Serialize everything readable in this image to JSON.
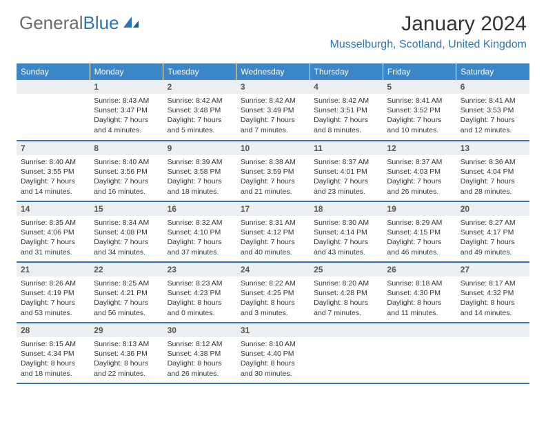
{
  "brand": {
    "part1": "General",
    "part2": "Blue"
  },
  "title": "January 2024",
  "location": "Musselburgh, Scotland, United Kingdom",
  "colors": {
    "header_bg": "#3d86c6",
    "accent": "#2e75b6",
    "daynum_bg": "#eceff1",
    "text": "#333333",
    "logo_gray": "#6b6b6b"
  },
  "weekdays": [
    "Sunday",
    "Monday",
    "Tuesday",
    "Wednesday",
    "Thursday",
    "Friday",
    "Saturday"
  ],
  "start_weekday": 1,
  "days": [
    {
      "n": 1,
      "sunrise": "8:43 AM",
      "sunset": "3:47 PM",
      "daylight": "7 hours and 4 minutes."
    },
    {
      "n": 2,
      "sunrise": "8:42 AM",
      "sunset": "3:48 PM",
      "daylight": "7 hours and 5 minutes."
    },
    {
      "n": 3,
      "sunrise": "8:42 AM",
      "sunset": "3:49 PM",
      "daylight": "7 hours and 7 minutes."
    },
    {
      "n": 4,
      "sunrise": "8:42 AM",
      "sunset": "3:51 PM",
      "daylight": "7 hours and 8 minutes."
    },
    {
      "n": 5,
      "sunrise": "8:41 AM",
      "sunset": "3:52 PM",
      "daylight": "7 hours and 10 minutes."
    },
    {
      "n": 6,
      "sunrise": "8:41 AM",
      "sunset": "3:53 PM",
      "daylight": "7 hours and 12 minutes."
    },
    {
      "n": 7,
      "sunrise": "8:40 AM",
      "sunset": "3:55 PM",
      "daylight": "7 hours and 14 minutes."
    },
    {
      "n": 8,
      "sunrise": "8:40 AM",
      "sunset": "3:56 PM",
      "daylight": "7 hours and 16 minutes."
    },
    {
      "n": 9,
      "sunrise": "8:39 AM",
      "sunset": "3:58 PM",
      "daylight": "7 hours and 18 minutes."
    },
    {
      "n": 10,
      "sunrise": "8:38 AM",
      "sunset": "3:59 PM",
      "daylight": "7 hours and 21 minutes."
    },
    {
      "n": 11,
      "sunrise": "8:37 AM",
      "sunset": "4:01 PM",
      "daylight": "7 hours and 23 minutes."
    },
    {
      "n": 12,
      "sunrise": "8:37 AM",
      "sunset": "4:03 PM",
      "daylight": "7 hours and 26 minutes."
    },
    {
      "n": 13,
      "sunrise": "8:36 AM",
      "sunset": "4:04 PM",
      "daylight": "7 hours and 28 minutes."
    },
    {
      "n": 14,
      "sunrise": "8:35 AM",
      "sunset": "4:06 PM",
      "daylight": "7 hours and 31 minutes."
    },
    {
      "n": 15,
      "sunrise": "8:34 AM",
      "sunset": "4:08 PM",
      "daylight": "7 hours and 34 minutes."
    },
    {
      "n": 16,
      "sunrise": "8:32 AM",
      "sunset": "4:10 PM",
      "daylight": "7 hours and 37 minutes."
    },
    {
      "n": 17,
      "sunrise": "8:31 AM",
      "sunset": "4:12 PM",
      "daylight": "7 hours and 40 minutes."
    },
    {
      "n": 18,
      "sunrise": "8:30 AM",
      "sunset": "4:14 PM",
      "daylight": "7 hours and 43 minutes."
    },
    {
      "n": 19,
      "sunrise": "8:29 AM",
      "sunset": "4:15 PM",
      "daylight": "7 hours and 46 minutes."
    },
    {
      "n": 20,
      "sunrise": "8:27 AM",
      "sunset": "4:17 PM",
      "daylight": "7 hours and 49 minutes."
    },
    {
      "n": 21,
      "sunrise": "8:26 AM",
      "sunset": "4:19 PM",
      "daylight": "7 hours and 53 minutes."
    },
    {
      "n": 22,
      "sunrise": "8:25 AM",
      "sunset": "4:21 PM",
      "daylight": "7 hours and 56 minutes."
    },
    {
      "n": 23,
      "sunrise": "8:23 AM",
      "sunset": "4:23 PM",
      "daylight": "8 hours and 0 minutes."
    },
    {
      "n": 24,
      "sunrise": "8:22 AM",
      "sunset": "4:25 PM",
      "daylight": "8 hours and 3 minutes."
    },
    {
      "n": 25,
      "sunrise": "8:20 AM",
      "sunset": "4:28 PM",
      "daylight": "8 hours and 7 minutes."
    },
    {
      "n": 26,
      "sunrise": "8:18 AM",
      "sunset": "4:30 PM",
      "daylight": "8 hours and 11 minutes."
    },
    {
      "n": 27,
      "sunrise": "8:17 AM",
      "sunset": "4:32 PM",
      "daylight": "8 hours and 14 minutes."
    },
    {
      "n": 28,
      "sunrise": "8:15 AM",
      "sunset": "4:34 PM",
      "daylight": "8 hours and 18 minutes."
    },
    {
      "n": 29,
      "sunrise": "8:13 AM",
      "sunset": "4:36 PM",
      "daylight": "8 hours and 22 minutes."
    },
    {
      "n": 30,
      "sunrise": "8:12 AM",
      "sunset": "4:38 PM",
      "daylight": "8 hours and 26 minutes."
    },
    {
      "n": 31,
      "sunrise": "8:10 AM",
      "sunset": "4:40 PM",
      "daylight": "8 hours and 30 minutes."
    }
  ],
  "labels": {
    "sunrise": "Sunrise:",
    "sunset": "Sunset:",
    "daylight": "Daylight:"
  }
}
